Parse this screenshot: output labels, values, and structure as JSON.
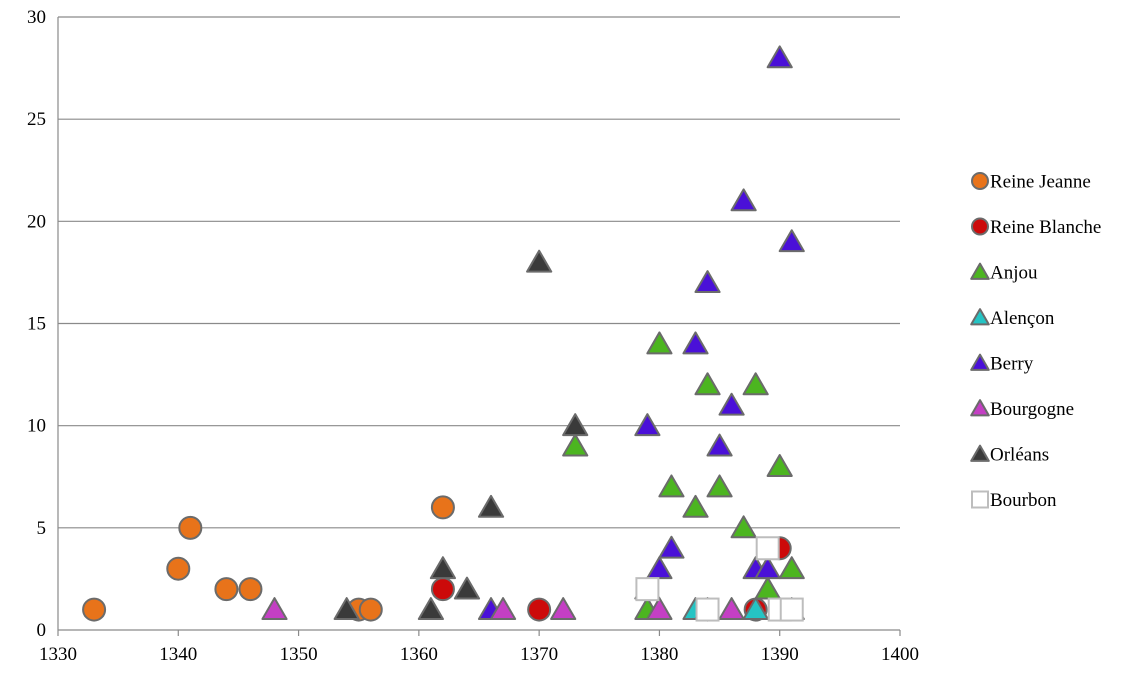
{
  "chart_data": {
    "type": "scatter",
    "title": "",
    "xlabel": "",
    "ylabel": "",
    "xlim": [
      1330,
      1400
    ],
    "ylim": [
      0,
      30
    ],
    "x_ticks": [
      1330,
      1340,
      1350,
      1360,
      1370,
      1380,
      1390,
      1400
    ],
    "y_ticks": [
      0,
      5,
      10,
      15,
      20,
      25,
      30
    ],
    "grid": "horizontal",
    "legend_position": "right",
    "series": [
      {
        "name": "Reine Jeanne",
        "marker": "circle",
        "color": "#e8731a",
        "points": [
          [
            1333,
            1
          ],
          [
            1340,
            3
          ],
          [
            1341,
            5
          ],
          [
            1344,
            2
          ],
          [
            1346,
            2
          ],
          [
            1355,
            1
          ],
          [
            1356,
            1
          ],
          [
            1362,
            6
          ]
        ]
      },
      {
        "name": "Reine Blanche",
        "marker": "circle",
        "color": "#cc0a0a",
        "points": [
          [
            1362,
            2
          ],
          [
            1370,
            1
          ],
          [
            1384,
            1
          ],
          [
            1388,
            1
          ],
          [
            1390,
            4
          ]
        ]
      },
      {
        "name": "Anjou",
        "marker": "triangle",
        "color": "#4cb520",
        "points": [
          [
            1373,
            9
          ],
          [
            1379,
            1
          ],
          [
            1380,
            14
          ],
          [
            1381,
            7
          ],
          [
            1383,
            6
          ],
          [
            1384,
            12
          ],
          [
            1385,
            7
          ],
          [
            1387,
            5
          ],
          [
            1388,
            12
          ],
          [
            1389,
            2
          ],
          [
            1390,
            8
          ],
          [
            1391,
            3
          ]
        ]
      },
      {
        "name": "Alençon",
        "marker": "triangle",
        "color": "#25c4c4",
        "points": [
          [
            1383,
            1
          ],
          [
            1388,
            1
          ]
        ]
      },
      {
        "name": "Berry",
        "marker": "triangle",
        "color": "#4a10d8",
        "points": [
          [
            1366,
            1
          ],
          [
            1379,
            10
          ],
          [
            1380,
            3
          ],
          [
            1381,
            4
          ],
          [
            1383,
            14
          ],
          [
            1384,
            17
          ],
          [
            1385,
            9
          ],
          [
            1386,
            11
          ],
          [
            1387,
            21
          ],
          [
            1388,
            3
          ],
          [
            1389,
            3
          ],
          [
            1390,
            28
          ],
          [
            1391,
            19
          ]
        ]
      },
      {
        "name": "Bourgogne",
        "marker": "triangle",
        "color": "#c43fc4",
        "points": [
          [
            1348,
            1
          ],
          [
            1367,
            1
          ],
          [
            1372,
            1
          ],
          [
            1380,
            1
          ],
          [
            1384,
            1
          ],
          [
            1386,
            1
          ],
          [
            1390,
            1
          ],
          [
            1391,
            1
          ]
        ]
      },
      {
        "name": "Orléans",
        "marker": "triangle",
        "color": "#3a3a3a",
        "points": [
          [
            1354,
            1
          ],
          [
            1361,
            1
          ],
          [
            1362,
            3
          ],
          [
            1364,
            2
          ],
          [
            1366,
            6
          ],
          [
            1370,
            18
          ],
          [
            1373,
            10
          ],
          [
            1379,
            2
          ]
        ]
      },
      {
        "name": "Bourbon",
        "marker": "square",
        "color": "#ffffff",
        "points": [
          [
            1379,
            2
          ],
          [
            1384,
            1
          ],
          [
            1389,
            4
          ],
          [
            1390,
            1
          ],
          [
            1391,
            1
          ]
        ]
      }
    ]
  }
}
